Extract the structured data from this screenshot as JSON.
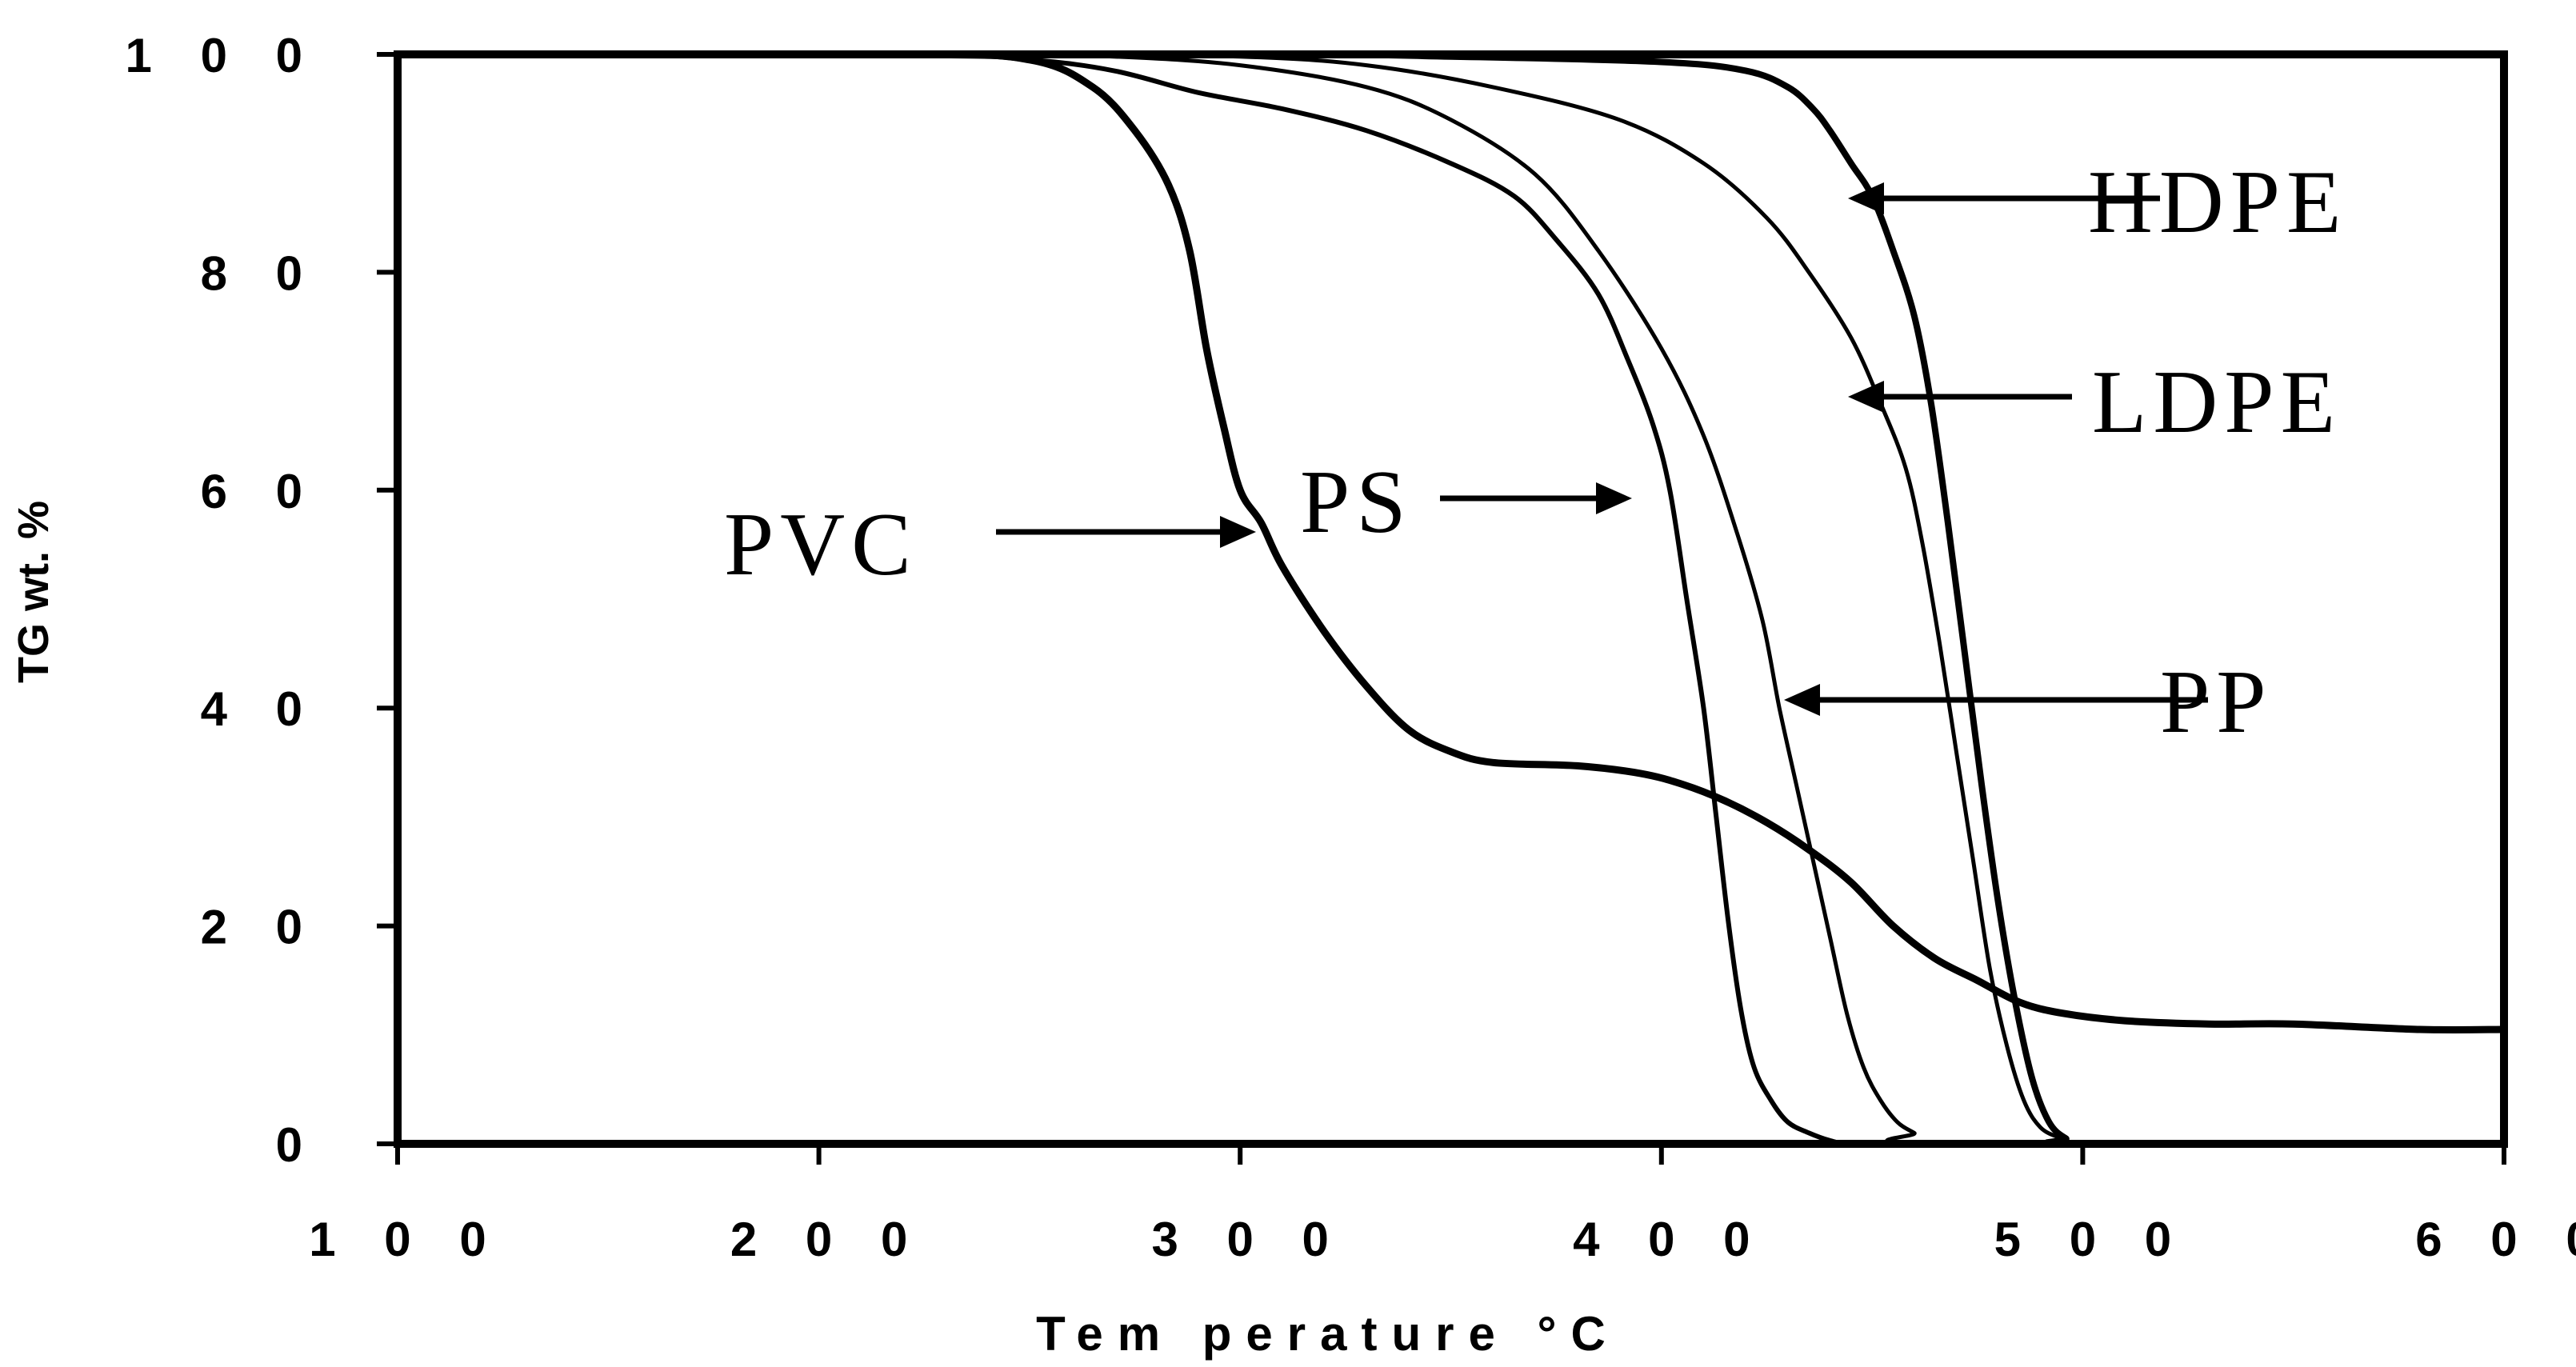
{
  "chart_data": {
    "type": "line",
    "title": "",
    "xlabel": "Tem perature °C",
    "ylabel": "TG wt. %",
    "xlim": [
      100,
      600
    ],
    "ylim": [
      0,
      100
    ],
    "xticks": [
      "1 0 0",
      "2 0 0",
      "3 0 0",
      "4 0 0",
      "5 0 0",
      "6 0 0"
    ],
    "yticks": [
      "0",
      "2 0",
      "4 0",
      "6 0",
      "8 0",
      "1 0 0"
    ],
    "grid": false,
    "legend": "inline arrow annotations",
    "series": [
      {
        "name": "PVC",
        "color": "#000000",
        "x": [
          100,
          220,
          250,
          265,
          275,
          283,
          288,
          292,
          296,
          300,
          305,
          310,
          320,
          330,
          340,
          350,
          360,
          380,
          395,
          405,
          415,
          425,
          435,
          445,
          455,
          465,
          475,
          485,
          495,
          510,
          530,
          550,
          580,
          600
        ],
        "y": [
          100,
          100,
          99.5,
          97,
          93,
          88,
          82,
          73,
          66,
          60,
          57,
          53,
          47,
          42,
          38,
          36,
          35,
          34.7,
          34,
          33,
          31.5,
          29.5,
          27,
          24,
          20,
          17,
          15,
          13,
          12,
          11.3,
          11,
          11,
          10.5,
          10.5
        ]
      },
      {
        "name": "PS",
        "color": "#000000",
        "x": [
          100,
          220,
          250,
          270,
          290,
          310,
          330,
          350,
          365,
          375,
          385,
          392,
          398,
          402,
          406,
          410,
          413,
          416,
          419,
          422,
          426,
          430,
          435,
          440,
          445,
          460,
          600
        ],
        "y": [
          100,
          100,
          99.5,
          98.5,
          96.5,
          95,
          93,
          90,
          87,
          83,
          78,
          72,
          66,
          60,
          50,
          40,
          30,
          20,
          12,
          7,
          4,
          2,
          1,
          0.3,
          0,
          0,
          0
        ]
      },
      {
        "name": "PP",
        "color": "#000000",
        "x": [
          100,
          240,
          270,
          300,
          330,
          350,
          370,
          385,
          400,
          410,
          418,
          424,
          428,
          432,
          436,
          440,
          444,
          448,
          452,
          456,
          460,
          465,
          600
        ],
        "y": [
          100,
          100,
          99.8,
          99,
          97,
          94,
          89,
          82,
          73,
          65,
          56,
          48,
          40,
          33,
          26,
          19,
          12,
          7,
          4,
          2,
          1,
          0,
          0
        ]
      },
      {
        "name": "LDPE",
        "color": "#000000",
        "x": [
          100,
          250,
          300,
          330,
          360,
          390,
          410,
          425,
          435,
          445,
          452,
          458,
          462,
          466,
          470,
          474,
          478,
          482,
          486,
          490,
          495,
          500,
          600
        ],
        "y": [
          100,
          100,
          99.8,
          99,
          97,
          94,
          90,
          85,
          80,
          74,
          68,
          62,
          55,
          46,
          36,
          26,
          16,
          9,
          4,
          1.5,
          0.5,
          0,
          0
        ]
      },
      {
        "name": "HDPE",
        "color": "#000000",
        "x": [
          100,
          300,
          350,
          400,
          420,
          430,
          436,
          440,
          445,
          450,
          455,
          460,
          464,
          468,
          472,
          476,
          480,
          484,
          488,
          492,
          496,
          500,
          600
        ],
        "y": [
          100,
          100,
          99.8,
          99.3,
          98.5,
          97,
          95,
          93,
          90,
          87,
          82,
          76,
          68,
          57,
          45,
          33,
          22,
          13,
          6,
          2,
          0.5,
          0,
          0
        ]
      }
    ]
  }
}
